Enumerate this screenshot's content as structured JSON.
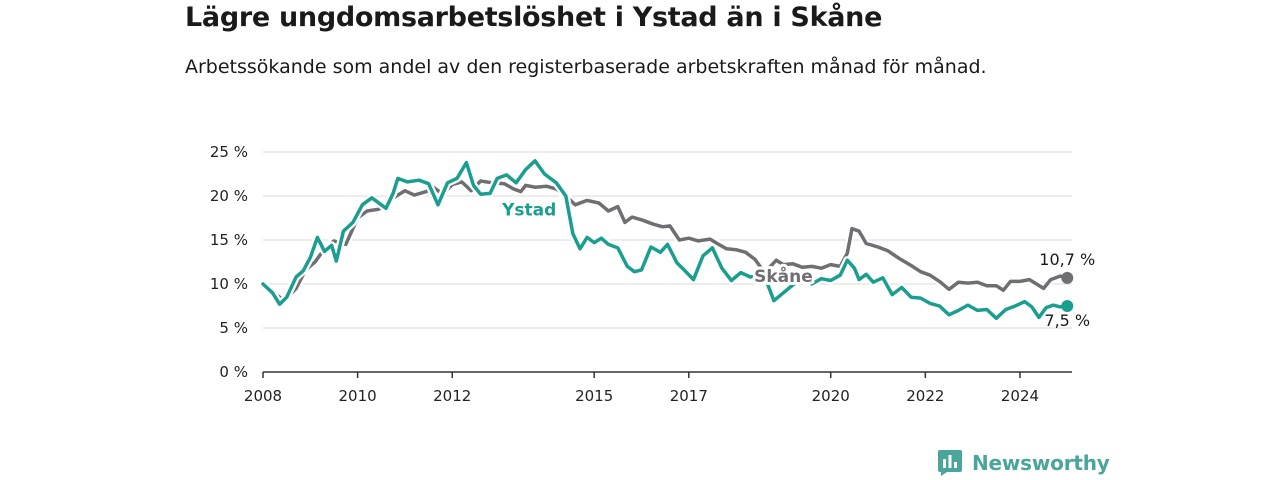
{
  "title": "Lägre ungdomsarbetslöshet i Ystad än i Skåne",
  "subtitle": "Arbetssökande som andel av den registerbaserade arbetskraften månad för månad.",
  "brand": "Newsworthy",
  "colors": {
    "ystad": "#1a9e8f",
    "skane": "#6e6e73",
    "grid": "#d8d8d8",
    "axis": "#333333"
  },
  "chart_data": {
    "type": "line",
    "title": "Lägre ungdomsarbetslöshet i Ystad än i Skåne",
    "subtitle": "Arbetssökande som andel av den registerbaserade arbetskraften månad för månad.",
    "x_axis": {
      "min": 2008.0,
      "max": 2025.1,
      "ticks": [
        2008,
        2010,
        2012,
        2015,
        2017,
        2020,
        2022,
        2024
      ],
      "tick_labels": [
        "2008",
        "2010",
        "2012",
        "2015",
        "2017",
        "2020",
        "2022",
        "2024"
      ]
    },
    "y_axis": {
      "min": 0,
      "max": 25,
      "ticks": [
        0,
        5,
        10,
        15,
        20,
        25
      ],
      "tick_labels": [
        "0 %",
        "5 %",
        "10 %",
        "15 %",
        "20 %",
        "25 %"
      ],
      "unit": "%"
    },
    "grid": "horizontal",
    "series": [
      {
        "name": "Skåne",
        "color": "#6e6e73",
        "label": "Skåne",
        "end_label": "10,7 %",
        "points": [
          [
            2008.0,
            9.8
          ],
          [
            2008.25,
            8.9
          ],
          [
            2008.45,
            8.1
          ],
          [
            2008.7,
            9.5
          ],
          [
            2008.9,
            11.6
          ],
          [
            2009.1,
            12.5
          ],
          [
            2009.3,
            14.0
          ],
          [
            2009.5,
            14.9
          ],
          [
            2009.75,
            14.5
          ],
          [
            2010.0,
            17.5
          ],
          [
            2010.2,
            18.3
          ],
          [
            2010.45,
            18.5
          ],
          [
            2010.7,
            19.6
          ],
          [
            2011.0,
            20.6
          ],
          [
            2011.2,
            20.1
          ],
          [
            2011.45,
            20.5
          ],
          [
            2011.6,
            21.0
          ],
          [
            2011.8,
            20.2
          ],
          [
            2012.0,
            21.3
          ],
          [
            2012.2,
            21.6
          ],
          [
            2012.4,
            20.6
          ],
          [
            2012.6,
            21.7
          ],
          [
            2012.85,
            21.5
          ],
          [
            2013.1,
            21.4
          ],
          [
            2013.3,
            20.8
          ],
          [
            2013.45,
            20.5
          ],
          [
            2013.55,
            21.2
          ],
          [
            2013.75,
            21.0
          ],
          [
            2014.0,
            21.1
          ],
          [
            2014.2,
            20.8
          ],
          [
            2014.4,
            20.0
          ],
          [
            2014.6,
            19.0
          ],
          [
            2014.85,
            19.5
          ],
          [
            2015.1,
            19.2
          ],
          [
            2015.3,
            18.3
          ],
          [
            2015.5,
            18.8
          ],
          [
            2015.65,
            17.0
          ],
          [
            2015.8,
            17.6
          ],
          [
            2016.0,
            17.3
          ],
          [
            2016.25,
            16.8
          ],
          [
            2016.45,
            16.5
          ],
          [
            2016.6,
            16.6
          ],
          [
            2016.8,
            15.0
          ],
          [
            2017.0,
            15.2
          ],
          [
            2017.2,
            14.9
          ],
          [
            2017.45,
            15.1
          ],
          [
            2017.6,
            14.6
          ],
          [
            2017.8,
            14.0
          ],
          [
            2018.0,
            13.9
          ],
          [
            2018.2,
            13.6
          ],
          [
            2018.4,
            12.8
          ],
          [
            2018.6,
            11.3
          ],
          [
            2018.85,
            12.7
          ],
          [
            2019.0,
            12.2
          ],
          [
            2019.2,
            12.3
          ],
          [
            2019.4,
            11.9
          ],
          [
            2019.6,
            12.0
          ],
          [
            2019.8,
            11.8
          ],
          [
            2020.0,
            12.2
          ],
          [
            2020.2,
            12.0
          ],
          [
            2020.35,
            13.5
          ],
          [
            2020.45,
            16.3
          ],
          [
            2020.6,
            16.0
          ],
          [
            2020.75,
            14.6
          ],
          [
            2021.0,
            14.2
          ],
          [
            2021.2,
            13.8
          ],
          [
            2021.45,
            12.9
          ],
          [
            2021.7,
            12.1
          ],
          [
            2021.9,
            11.4
          ],
          [
            2022.1,
            11.0
          ],
          [
            2022.3,
            10.3
          ],
          [
            2022.5,
            9.4
          ],
          [
            2022.7,
            10.2
          ],
          [
            2022.9,
            10.1
          ],
          [
            2023.1,
            10.2
          ],
          [
            2023.3,
            9.8
          ],
          [
            2023.5,
            9.8
          ],
          [
            2023.65,
            9.3
          ],
          [
            2023.8,
            10.3
          ],
          [
            2024.0,
            10.3
          ],
          [
            2024.2,
            10.5
          ],
          [
            2024.35,
            10.0
          ],
          [
            2024.5,
            9.5
          ],
          [
            2024.65,
            10.5
          ],
          [
            2024.85,
            10.9
          ],
          [
            2025.0,
            10.7
          ]
        ]
      },
      {
        "name": "Ystad",
        "color": "#1a9e8f",
        "label": "Ystad",
        "end_label": "7,5 %",
        "points": [
          [
            2008.0,
            10.0
          ],
          [
            2008.2,
            9.0
          ],
          [
            2008.35,
            7.7
          ],
          [
            2008.5,
            8.5
          ],
          [
            2008.7,
            10.8
          ],
          [
            2008.85,
            11.5
          ],
          [
            2009.0,
            13.0
          ],
          [
            2009.15,
            15.3
          ],
          [
            2009.3,
            13.7
          ],
          [
            2009.45,
            14.4
          ],
          [
            2009.55,
            12.6
          ],
          [
            2009.7,
            16.0
          ],
          [
            2009.9,
            17.0
          ],
          [
            2010.1,
            19.0
          ],
          [
            2010.3,
            19.8
          ],
          [
            2010.5,
            19.0
          ],
          [
            2010.6,
            18.6
          ],
          [
            2010.75,
            20.3
          ],
          [
            2010.85,
            22.0
          ],
          [
            2011.05,
            21.6
          ],
          [
            2011.3,
            21.8
          ],
          [
            2011.5,
            21.4
          ],
          [
            2011.7,
            19.0
          ],
          [
            2011.9,
            21.5
          ],
          [
            2012.1,
            22.0
          ],
          [
            2012.3,
            23.8
          ],
          [
            2012.45,
            21.2
          ],
          [
            2012.6,
            20.2
          ],
          [
            2012.8,
            20.3
          ],
          [
            2012.95,
            22.0
          ],
          [
            2013.15,
            22.4
          ],
          [
            2013.35,
            21.5
          ],
          [
            2013.55,
            23.0
          ],
          [
            2013.75,
            24.0
          ],
          [
            2013.95,
            22.5
          ],
          [
            2014.2,
            21.5
          ],
          [
            2014.4,
            20.0
          ],
          [
            2014.55,
            15.7
          ],
          [
            2014.7,
            14.0
          ],
          [
            2014.85,
            15.3
          ],
          [
            2015.0,
            14.7
          ],
          [
            2015.15,
            15.2
          ],
          [
            2015.3,
            14.5
          ],
          [
            2015.5,
            14.1
          ],
          [
            2015.7,
            12.0
          ],
          [
            2015.85,
            11.4
          ],
          [
            2016.0,
            11.6
          ],
          [
            2016.2,
            14.2
          ],
          [
            2016.4,
            13.6
          ],
          [
            2016.55,
            14.5
          ],
          [
            2016.75,
            12.4
          ],
          [
            2016.9,
            11.6
          ],
          [
            2017.1,
            10.5
          ],
          [
            2017.3,
            13.2
          ],
          [
            2017.5,
            14.1
          ],
          [
            2017.7,
            11.8
          ],
          [
            2017.9,
            10.4
          ],
          [
            2018.1,
            11.3
          ],
          [
            2018.3,
            10.8
          ],
          [
            2018.5,
            11.0
          ],
          [
            2018.65,
            10.2
          ],
          [
            2018.8,
            8.1
          ],
          [
            2019.0,
            9.0
          ],
          [
            2019.2,
            9.9
          ],
          [
            2019.4,
            10.7
          ],
          [
            2019.6,
            10.0
          ],
          [
            2019.8,
            10.6
          ],
          [
            2020.0,
            10.4
          ],
          [
            2020.2,
            11.0
          ],
          [
            2020.35,
            12.7
          ],
          [
            2020.5,
            11.8
          ],
          [
            2020.6,
            10.5
          ],
          [
            2020.75,
            11.1
          ],
          [
            2020.9,
            10.2
          ],
          [
            2021.1,
            10.7
          ],
          [
            2021.3,
            8.8
          ],
          [
            2021.5,
            9.6
          ],
          [
            2021.7,
            8.5
          ],
          [
            2021.9,
            8.4
          ],
          [
            2022.1,
            7.8
          ],
          [
            2022.3,
            7.5
          ],
          [
            2022.5,
            6.5
          ],
          [
            2022.7,
            7.0
          ],
          [
            2022.9,
            7.6
          ],
          [
            2023.1,
            7.0
          ],
          [
            2023.3,
            7.1
          ],
          [
            2023.5,
            6.1
          ],
          [
            2023.7,
            7.1
          ],
          [
            2023.9,
            7.5
          ],
          [
            2024.1,
            8.0
          ],
          [
            2024.25,
            7.4
          ],
          [
            2024.4,
            6.2
          ],
          [
            2024.55,
            7.3
          ],
          [
            2024.7,
            7.6
          ],
          [
            2024.85,
            7.4
          ],
          [
            2025.0,
            7.5
          ]
        ]
      }
    ],
    "annotations": [
      {
        "text": "Ystad",
        "series": "Ystad"
      },
      {
        "text": "Skåne",
        "series": "Skåne"
      },
      {
        "text": "10,7 %",
        "series": "Skåne",
        "position": "end"
      },
      {
        "text": "7,5 %",
        "series": "Ystad",
        "position": "end"
      }
    ]
  }
}
